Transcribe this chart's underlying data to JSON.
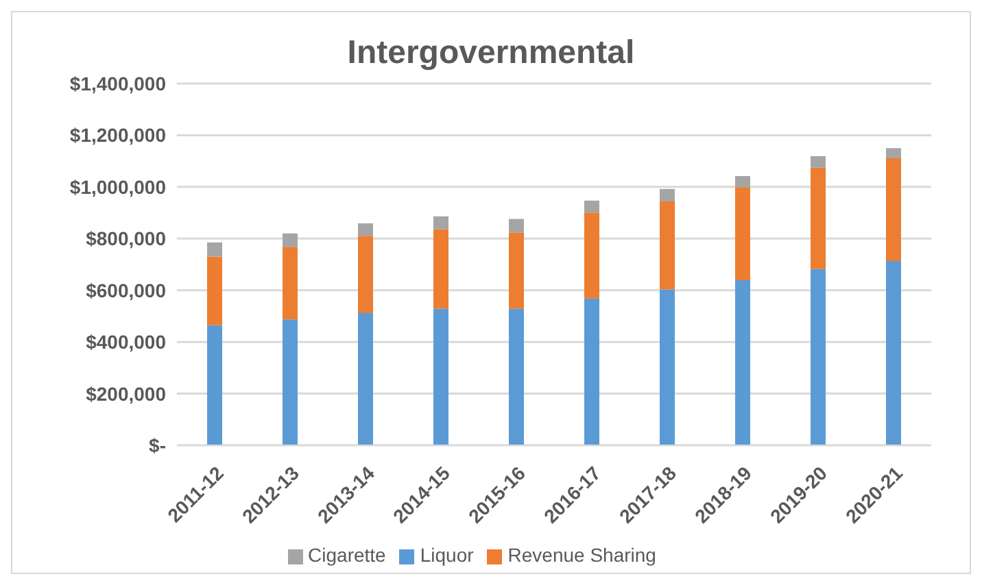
{
  "chart_data": {
    "type": "bar",
    "title": "Intergovernmental",
    "stacked": true,
    "categories": [
      "2011-12",
      "2012-13",
      "2013-14",
      "2014-15",
      "2015-16",
      "2016-17",
      "2017-18",
      "2018-19",
      "2019-20",
      "2020-21"
    ],
    "series": [
      {
        "name": "Liquor",
        "color": "#5b9bd5",
        "values": [
          465000,
          487000,
          512000,
          528000,
          528000,
          568000,
          603000,
          639000,
          682000,
          713000
        ]
      },
      {
        "name": "Revenue Sharing",
        "color": "#ed7d31",
        "values": [
          265000,
          281000,
          299000,
          308000,
          296000,
          333000,
          341000,
          360000,
          393000,
          398000
        ]
      },
      {
        "name": "Cigarette",
        "color": "#a5a5a5",
        "values": [
          55000,
          52000,
          48000,
          50000,
          52000,
          46000,
          48000,
          43000,
          44000,
          39000
        ]
      }
    ],
    "ylim": [
      0,
      1400000
    ],
    "yticks": [
      {
        "value": 0,
        "label": "$-"
      },
      {
        "value": 200000,
        "label": "$200,000"
      },
      {
        "value": 400000,
        "label": "$400,000"
      },
      {
        "value": 600000,
        "label": "$600,000"
      },
      {
        "value": 800000,
        "label": "$800,000"
      },
      {
        "value": 1000000,
        "label": "$1,000,000"
      },
      {
        "value": 1200000,
        "label": "$1,200,000"
      },
      {
        "value": 1400000,
        "label": "$1,400,000"
      }
    ],
    "grid": "y",
    "legend": "bottom"
  }
}
